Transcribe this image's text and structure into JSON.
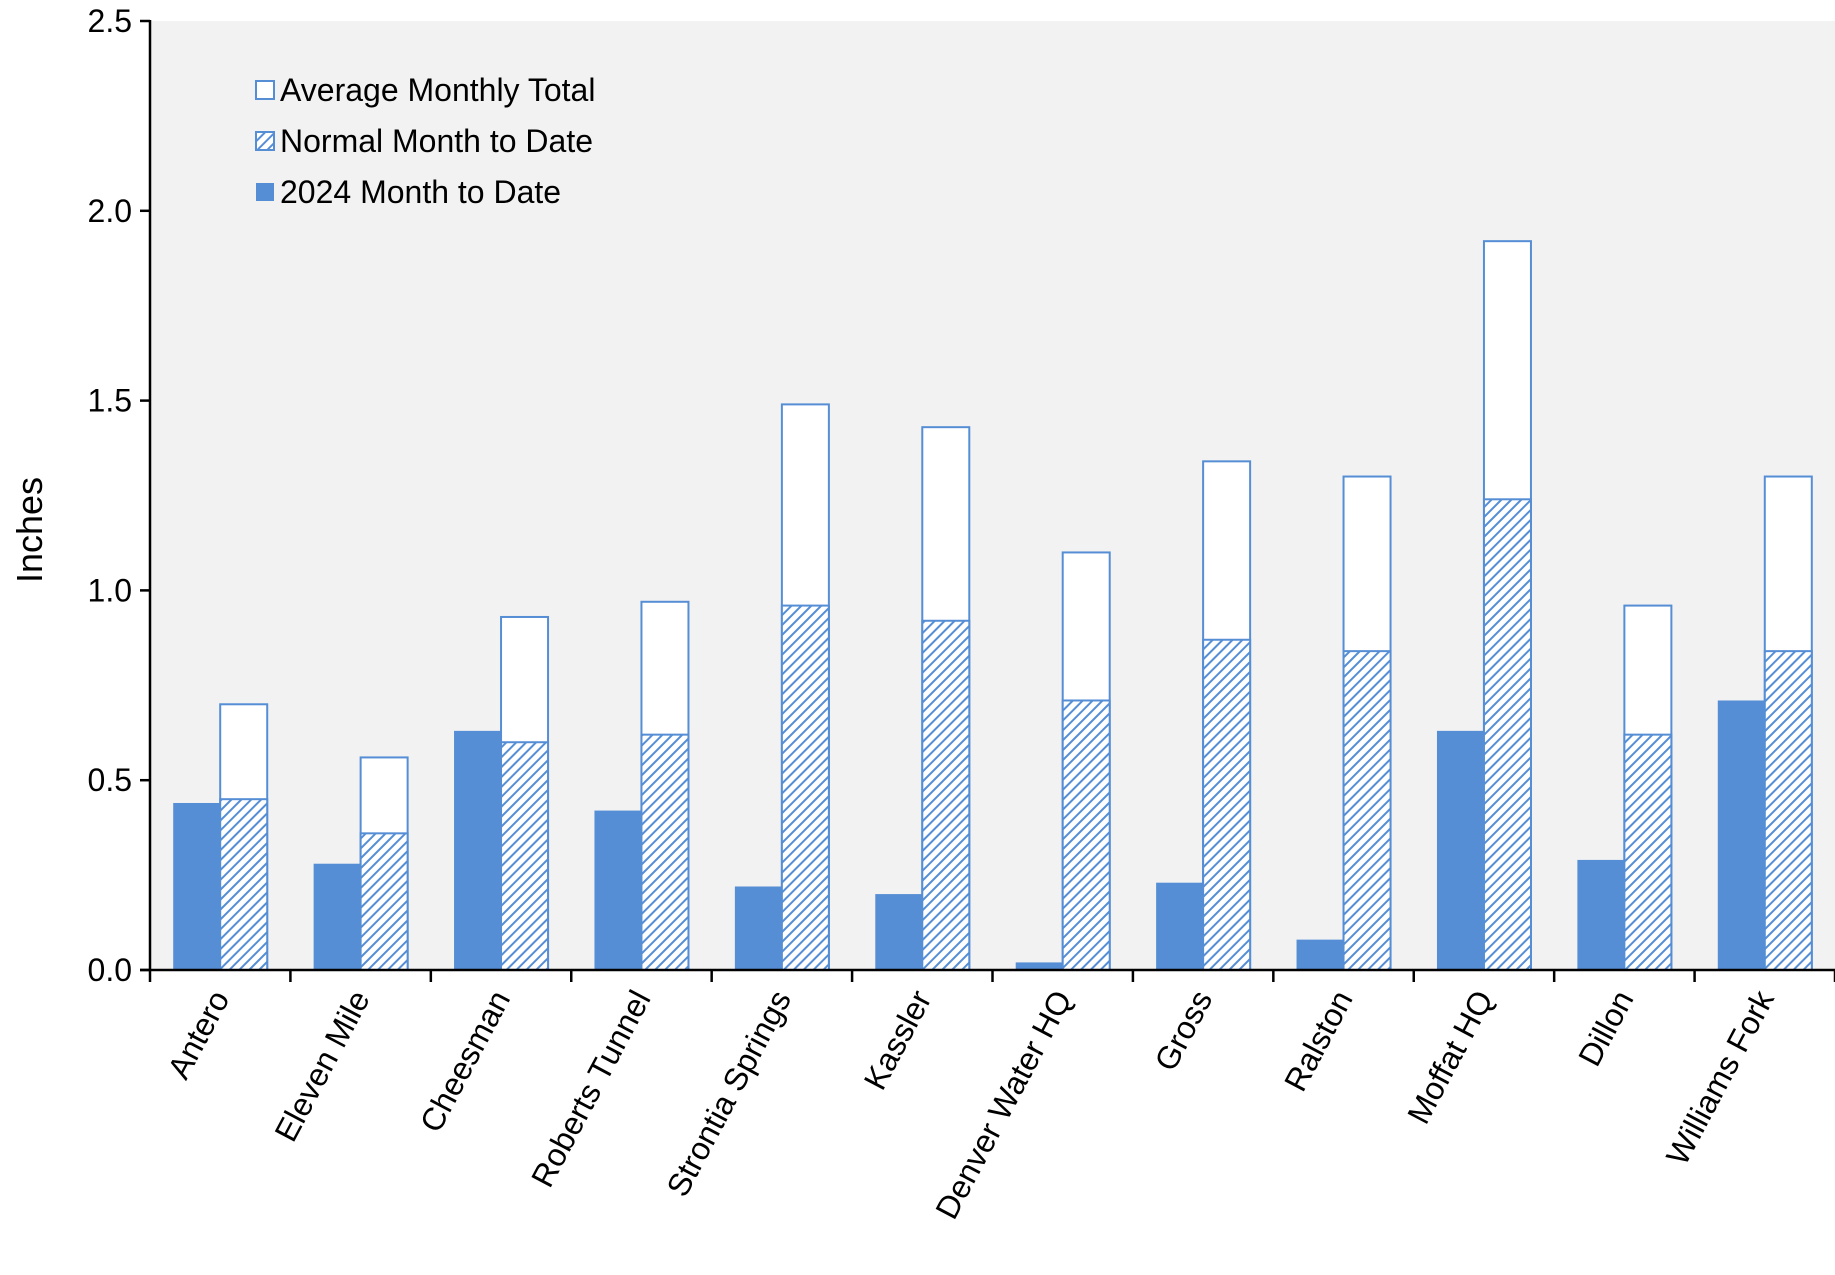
{
  "chart_data": {
    "type": "bar",
    "title": "",
    "xlabel": "",
    "ylabel": "Inches",
    "ylim": [
      0,
      2.5
    ],
    "yticks": [
      "0.0",
      "0.5",
      "1.0",
      "1.5",
      "2.0",
      "2.5"
    ],
    "grid": false,
    "legend_position": "top-left",
    "categories": [
      "Antero",
      "Eleven Mile",
      "Cheesman",
      "Roberts Tunnel",
      "Strontia Springs",
      "Kassler",
      "Denver Water HQ",
      "Gross",
      "Ralston",
      "Moffat HQ",
      "Dillon",
      "Williams Fork"
    ],
    "series": [
      {
        "name": "Average Monthly Total",
        "style": "outline",
        "color": "#558ED5",
        "values": [
          0.7,
          0.56,
          0.93,
          0.97,
          1.49,
          1.43,
          1.1,
          1.34,
          1.3,
          1.92,
          0.96,
          1.3
        ]
      },
      {
        "name": "Normal Month to Date",
        "style": "hatched",
        "color": "#558ED5",
        "values": [
          0.45,
          0.36,
          0.6,
          0.62,
          0.96,
          0.92,
          0.71,
          0.87,
          0.84,
          1.24,
          0.62,
          0.84
        ]
      },
      {
        "name": "2024 Month to Date",
        "style": "solid",
        "color": "#558ED5",
        "values": [
          0.44,
          0.28,
          0.63,
          0.42,
          0.22,
          0.2,
          0.02,
          0.23,
          0.08,
          0.63,
          0.29,
          0.71
        ]
      }
    ],
    "colors": {
      "plot_background": "#F2F2F2",
      "bar": "#558ED5",
      "axis": "#000000"
    }
  }
}
